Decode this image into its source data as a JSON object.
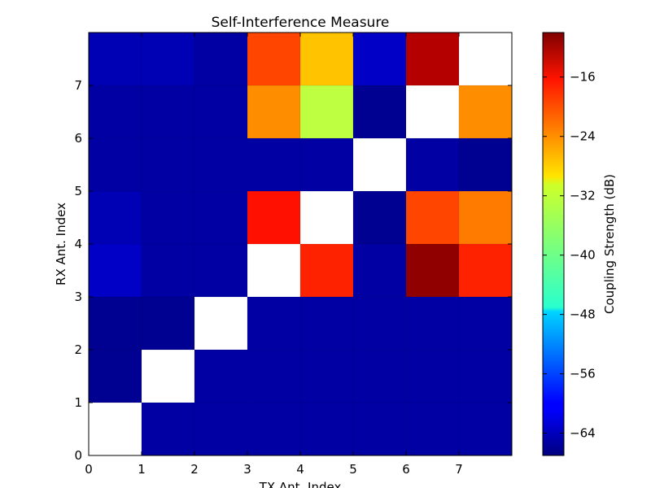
{
  "chart_data": {
    "type": "heatmap",
    "title": "Self-Interference Measure",
    "xlabel": "TX Ant. Index",
    "ylabel": "RX Ant. Index",
    "x_ticks": [
      "0",
      "1",
      "2",
      "3",
      "4",
      "5",
      "6",
      "7"
    ],
    "y_ticks": [
      "0",
      "1",
      "2",
      "3",
      "4",
      "5",
      "6",
      "7"
    ],
    "xlim": [
      0,
      8
    ],
    "ylim": [
      0,
      8
    ],
    "colorbar": {
      "label": "Coupling Strength (dB)",
      "range": [
        -67,
        -10
      ],
      "ticks": [
        -64,
        -56,
        -48,
        -40,
        -32,
        -24,
        -16
      ],
      "tick_labels": [
        "−64",
        "−56",
        "−48",
        "−40",
        "−32",
        "−24",
        "−16"
      ],
      "colormap": "jet"
    },
    "missing_color": "#ffffff",
    "values": [
      [
        null,
        -65,
        -65,
        -65,
        -65,
        -65,
        -65,
        -65
      ],
      [
        -66,
        null,
        -65,
        -65,
        -65,
        -65,
        -65,
        -65
      ],
      [
        -66,
        -66,
        null,
        -65,
        -65,
        -65,
        -65,
        -65
      ],
      [
        -63,
        -65,
        -65,
        null,
        -19,
        -65,
        -11,
        -19
      ],
      [
        -64,
        -65,
        -65,
        -18,
        null,
        -66,
        -21,
        -24
      ],
      [
        -65,
        -65,
        -65,
        -65,
        -65,
        null,
        -65,
        -66
      ],
      [
        -65,
        -65,
        -65,
        -25,
        -35,
        -66,
        null,
        -25
      ],
      [
        -64,
        -64,
        -65,
        -21,
        -28,
        -63,
        -13,
        null
      ]
    ]
  }
}
